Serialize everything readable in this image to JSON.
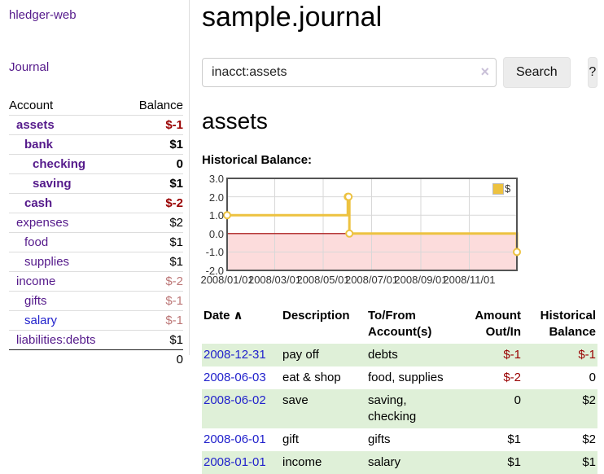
{
  "sidebar": {
    "app_title": "hledger-web",
    "journal_link": "Journal",
    "table": {
      "header": {
        "account": "Account",
        "balance": "Balance"
      },
      "accounts": [
        {
          "name": "assets",
          "balance": "$-1"
        },
        {
          "name": "bank",
          "balance": "$1"
        },
        {
          "name": "checking",
          "balance": "0"
        },
        {
          "name": "saving",
          "balance": "$1"
        },
        {
          "name": "cash",
          "balance": "$-2"
        },
        {
          "name": "expenses",
          "balance": "$2"
        },
        {
          "name": "food",
          "balance": "$1"
        },
        {
          "name": "supplies",
          "balance": "$1"
        },
        {
          "name": "income",
          "balance": "$-2"
        },
        {
          "name": "gifts",
          "balance": "$-1"
        },
        {
          "name": "salary",
          "balance": "$-1"
        },
        {
          "name": "liabilities:debts",
          "balance": "$1"
        }
      ],
      "total": "0"
    }
  },
  "header": {
    "title": "sample.journal"
  },
  "search": {
    "value": "inacct:assets",
    "clear_icon": "×",
    "search_button": "Search",
    "help_button": "?"
  },
  "account_page": {
    "title": "assets",
    "chart_label": "Historical Balance:"
  },
  "chart_data": {
    "type": "line",
    "title": "Historical Balance",
    "step": true,
    "series": [
      {
        "name": "$",
        "points": [
          {
            "date": "2008-01-01",
            "value": 1
          },
          {
            "date": "2008-06-01",
            "value": 2
          },
          {
            "date": "2008-06-02",
            "value": 2
          },
          {
            "date": "2008-06-03",
            "value": 0
          },
          {
            "date": "2008-12-31",
            "value": -1
          }
        ]
      }
    ],
    "xlim": [
      "2008-01-01",
      "2008-12-31"
    ],
    "ylim": [
      -2,
      3
    ],
    "x_ticks": [
      {
        "date": "2008-01-01",
        "label": "2008/01/01"
      },
      {
        "date": "2008-03-01",
        "label": "2008/03/01"
      },
      {
        "date": "2008-05-01",
        "label": "2008/05/01"
      },
      {
        "date": "2008-07-01",
        "label": "2008/07/01"
      },
      {
        "date": "2008-09-01",
        "label": "2008/09/01"
      },
      {
        "date": "2008-11-01",
        "label": "2008/11/01"
      }
    ],
    "y_ticks": [
      {
        "value": 3,
        "label": "3.0"
      },
      {
        "value": 2,
        "label": "2.0"
      },
      {
        "value": 1,
        "label": "1.0"
      },
      {
        "value": 0,
        "label": "0.0"
      },
      {
        "value": -1,
        "label": "-1.0"
      },
      {
        "value": -2,
        "label": "-2.0"
      }
    ],
    "legend": {
      "label": "$",
      "position": "top-right"
    },
    "grid": true,
    "colors": {
      "line": "#edc240",
      "marker_fill": "#ffffff",
      "negative_region": "#fcdcdc",
      "zero_line": "#a40000",
      "grid": "#d8d8d8",
      "border": "#545454"
    }
  },
  "register": {
    "headers": {
      "date": "Date",
      "sort_asc_icon": "∧",
      "description": "Description",
      "accounts": "To/From Account(s)",
      "amount": "Amount Out/In",
      "balance": "Historical Balance"
    },
    "rows": [
      {
        "date": "2008-12-31",
        "description": "pay off",
        "accounts": "debts",
        "amount": "$-1",
        "balance": "$-1"
      },
      {
        "date": "2008-06-03",
        "description": "eat & shop",
        "accounts": "food, supplies",
        "amount": "$-2",
        "balance": "0"
      },
      {
        "date": "2008-06-02",
        "description": "save",
        "accounts": "saving, checking",
        "amount": "0",
        "balance": "$2"
      },
      {
        "date": "2008-06-01",
        "description": "gift",
        "accounts": "gifts",
        "amount": "$1",
        "balance": "$2"
      },
      {
        "date": "2008-01-01",
        "description": "income",
        "accounts": "salary",
        "amount": "$1",
        "balance": "$1"
      }
    ]
  }
}
